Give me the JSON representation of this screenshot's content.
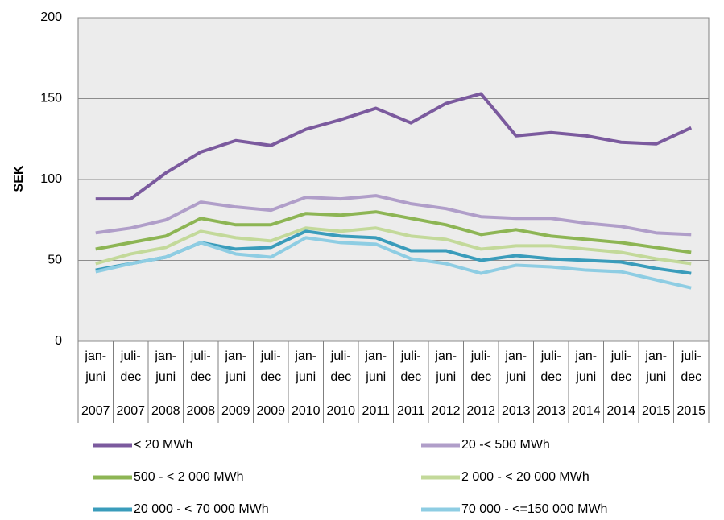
{
  "chart_data": {
    "type": "line",
    "y_label": "SEK",
    "categories": [
      [
        "jan-",
        "juni"
      ],
      [
        "juli-",
        "dec"
      ],
      [
        "jan-",
        "juni"
      ],
      [
        "juli-",
        "dec"
      ],
      [
        "jan-",
        "juni"
      ],
      [
        "juli-",
        "dec"
      ],
      [
        "jan-",
        "juni"
      ],
      [
        "juli-",
        "dec"
      ],
      [
        "jan-",
        "juni"
      ],
      [
        "juli-",
        "dec"
      ],
      [
        "jan-",
        "juni"
      ],
      [
        "juli-",
        "dec"
      ],
      [
        "jan-",
        "juni"
      ],
      [
        "juli-",
        "dec"
      ],
      [
        "jan-",
        "juni"
      ],
      [
        "juli-",
        "dec"
      ],
      [
        "jan-",
        "juni"
      ],
      [
        "juli-",
        "dec"
      ]
    ],
    "category_groups": [
      "2007",
      "2007",
      "2008",
      "2008",
      "2009",
      "2009",
      "2010",
      "2010",
      "2011",
      "2011",
      "2012",
      "2012",
      "2013",
      "2013",
      "2014",
      "2014",
      "2015",
      "2015"
    ],
    "ylim": [
      0,
      200
    ],
    "yticks": [
      0,
      50,
      100,
      150,
      200
    ],
    "grid": true,
    "series": [
      {
        "name": "< 20 MWh",
        "color": "#7b5a9e",
        "values": [
          88,
          88,
          104,
          117,
          124,
          121,
          131,
          137,
          144,
          135,
          147,
          153,
          127,
          129,
          127,
          123,
          122,
          132
        ]
      },
      {
        "name": "20 -< 500 MWh",
        "color": "#b09ec9",
        "values": [
          67,
          70,
          75,
          86,
          83,
          81,
          89,
          88,
          90,
          85,
          82,
          77,
          76,
          76,
          73,
          71,
          67,
          66
        ]
      },
      {
        "name": "500 - < 2 000 MWh",
        "color": "#8db554",
        "values": [
          57,
          61,
          65,
          76,
          72,
          72,
          79,
          78,
          80,
          76,
          72,
          66,
          69,
          65,
          63,
          61,
          58,
          55
        ]
      },
      {
        "name": "2 000 - < 20 000 MWh",
        "color": "#c3d99a",
        "values": [
          48,
          54,
          58,
          68,
          64,
          62,
          70,
          68,
          70,
          65,
          63,
          57,
          59,
          59,
          57,
          55,
          51,
          48
        ]
      },
      {
        "name": "20 000 - < 70 000 MWh",
        "color": "#3a9cbb",
        "values": [
          44,
          48,
          52,
          61,
          57,
          58,
          68,
          65,
          64,
          56,
          56,
          50,
          53,
          51,
          50,
          49,
          45,
          42
        ]
      },
      {
        "name": "70 000 - <=150 000 MWh",
        "color": "#8ecde3",
        "values": [
          43,
          48,
          52,
          61,
          54,
          52,
          64,
          61,
          60,
          51,
          48,
          42,
          47,
          46,
          44,
          43,
          38,
          33
        ]
      }
    ]
  }
}
